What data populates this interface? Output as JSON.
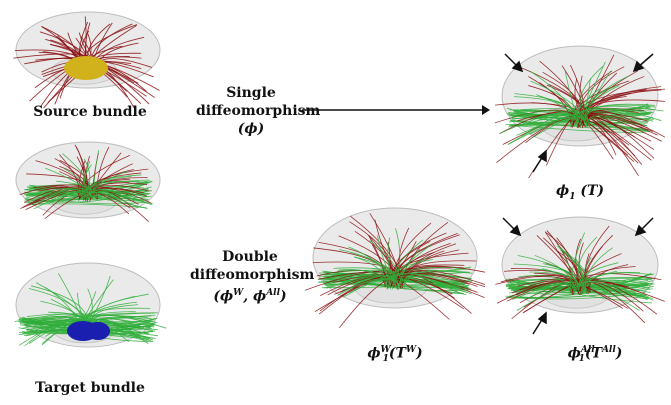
{
  "labels": {
    "source": "Source bundle",
    "target": "Target bundle",
    "single_line1": "Single",
    "single_line2": "diffeomorphism",
    "single_line3": "(ϕ)",
    "double_line1": "Double",
    "double_line2": "diffeomorphism",
    "double_phi": "ϕ",
    "double_sup1": "W",
    "double_sep": ", ϕ",
    "double_sup2": "All",
    "phi": "ϕ",
    "sub1": "1",
    "T": "T",
    "supW": "W",
    "supAll": "All",
    "lparen": "(",
    "rparen": ")"
  },
  "colors": {
    "brain": "#d0d0d0",
    "fiber_red": "#8b0f12",
    "fiber_green": "#2fae3a",
    "source_region": "#d2b21c",
    "target_region": "#1a1fb0",
    "arrow": "#111111"
  }
}
